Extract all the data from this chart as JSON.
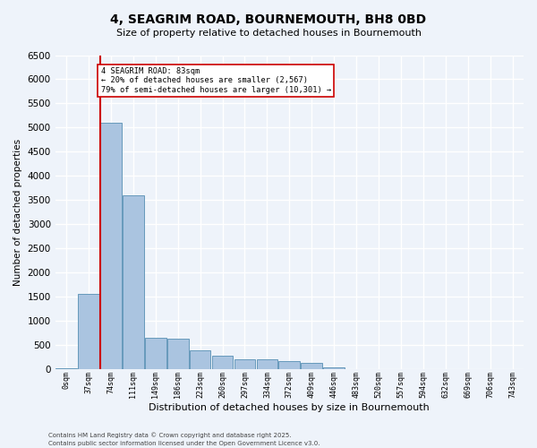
{
  "title": "4, SEAGRIM ROAD, BOURNEMOUTH, BH8 0BD",
  "subtitle": "Size of property relative to detached houses in Bournemouth",
  "xlabel": "Distribution of detached houses by size in Bournemouth",
  "ylabel": "Number of detached properties",
  "footnote1": "Contains HM Land Registry data © Crown copyright and database right 2025.",
  "footnote2": "Contains public sector information licensed under the Open Government Licence v3.0.",
  "bar_labels": [
    "0sqm",
    "37sqm",
    "74sqm",
    "111sqm",
    "149sqm",
    "186sqm",
    "223sqm",
    "260sqm",
    "297sqm",
    "334sqm",
    "372sqm",
    "409sqm",
    "446sqm",
    "483sqm",
    "520sqm",
    "557sqm",
    "594sqm",
    "632sqm",
    "669sqm",
    "706sqm",
    "743sqm"
  ],
  "bar_values": [
    10,
    1550,
    5100,
    3600,
    650,
    620,
    380,
    270,
    200,
    190,
    165,
    130,
    30,
    0,
    0,
    0,
    0,
    0,
    0,
    0,
    0
  ],
  "bar_color": "#aac4e0",
  "bar_edge_color": "#6699bb",
  "bg_color": "#eef3fa",
  "grid_color": "#ffffff",
  "marker_line_color": "#cc0000",
  "annotation_line1": "4 SEAGRIM ROAD: 83sqm",
  "annotation_line2": "← 20% of detached houses are smaller (2,567)",
  "annotation_line3": "79% of semi-detached houses are larger (10,301) →",
  "ylim": [
    0,
    6500
  ],
  "yticks": [
    0,
    500,
    1000,
    1500,
    2000,
    2500,
    3000,
    3500,
    4000,
    4500,
    5000,
    5500,
    6000,
    6500
  ]
}
